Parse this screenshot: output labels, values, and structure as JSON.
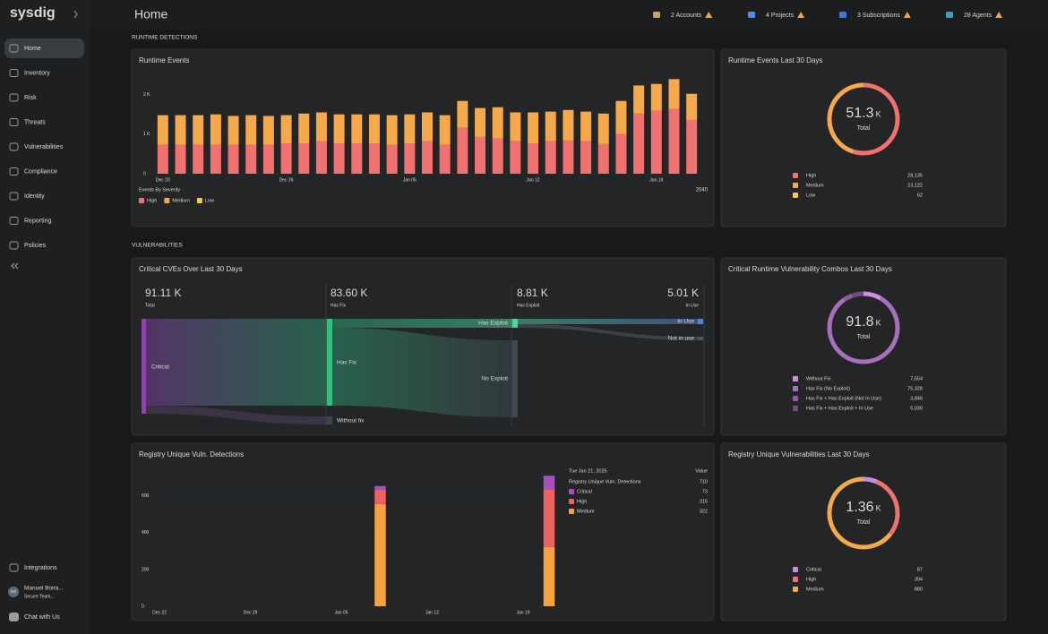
{
  "sidebar": {
    "logo": "sysdig",
    "nav": [
      "Home",
      "Inventory",
      "Risk",
      "Threats",
      "Vulnerabilities",
      "Compliance",
      "Identity",
      "Reporting",
      "Policies"
    ],
    "footer": [
      "Integrations",
      "Chat with Us"
    ],
    "user": {
      "initials": "MB",
      "name": "Manuel Boira...",
      "team": "Secure Team..."
    }
  },
  "topbar": {
    "title": "Home",
    "badges": [
      "2 Accounts",
      "4 Projects",
      "3 Subscriptions",
      "28 Agents"
    ]
  },
  "sections": [
    "RUNTIME DETECTIONS",
    "VULNERABILITIES"
  ],
  "runtime_events": {
    "type": "bar",
    "title": "Runtime Events",
    "categories": [
      "Dec 20",
      null,
      null,
      null,
      null,
      null,
      null,
      "Dec 26",
      null,
      null,
      null,
      null,
      null,
      null,
      "Jan 05",
      null,
      null,
      null,
      null,
      null,
      null,
      "Jan 12",
      null,
      null,
      null,
      null,
      null,
      null,
      "Jan 19",
      null,
      null
    ],
    "series": [
      {
        "name": "High",
        "color": "#f07170",
        "values": [
          730,
          730,
          730,
          730,
          730,
          730,
          730,
          770,
          770,
          820,
          770,
          770,
          770,
          730,
          770,
          820,
          730,
          1160,
          930,
          890,
          820,
          770,
          820,
          840,
          820,
          750,
          1000,
          1520,
          1590,
          1640,
          1360
        ]
      },
      {
        "name": "Medium",
        "color": "#f5a94a",
        "values": [
          750,
          750,
          750,
          770,
          730,
          750,
          730,
          710,
          750,
          730,
          730,
          730,
          730,
          750,
          730,
          730,
          750,
          680,
          730,
          790,
          730,
          780,
          750,
          770,
          750,
          770,
          840,
          710,
          680,
          750,
          660
        ]
      },
      {
        "name": "Low",
        "color": "#f3c945",
        "values": [
          2,
          2,
          2,
          2,
          2,
          2,
          2,
          2,
          2,
          2,
          2,
          2,
          2,
          2,
          2,
          2,
          2,
          2,
          2,
          2,
          2,
          2,
          2,
          2,
          2,
          2,
          2,
          2,
          2,
          2,
          2
        ]
      }
    ],
    "ylim": [
      0,
      2400
    ],
    "yticks": [
      0,
      {
        "value": 1000,
        "label": "1 K"
      },
      {
        "value": 2000,
        "label": "2 K"
      }
    ],
    "legend_title": "Events By Severity",
    "hover_value": 2040
  },
  "runtime_donut": {
    "title": "Runtime Events Last 30 Days",
    "center": "51.3",
    "unit": "K",
    "center_label": "Total",
    "items": [
      {
        "name": "High",
        "color": "#f07170",
        "value": 28135,
        "label": "28,135"
      },
      {
        "name": "Medium",
        "color": "#f5a94a",
        "value": 23122,
        "label": "23,122"
      },
      {
        "name": "Low",
        "color": "#f3c945",
        "value": 62
      }
    ]
  },
  "cves": {
    "title": "Critical CVEs Over Last 30 Days",
    "columns": [
      {
        "value": "91.11 K",
        "label": "Total"
      },
      {
        "value": "83.60 K",
        "label": "Has Fix"
      },
      {
        "value": "8.81 K",
        "label": "Has Exploit"
      },
      {
        "value": "5.01 K",
        "label": "In Use"
      }
    ],
    "nodes": [
      "Critical",
      "Has Fix",
      "Without fix",
      "Has Exploit",
      "No Exploit",
      "In Use",
      "Not in use"
    ]
  },
  "combos_donut": {
    "title": "Critical Runtime Vulnerability Combos Last 30 Days",
    "center": "91.8",
    "unit": "K",
    "center_label": "Total",
    "items": [
      {
        "name": "Without Fix",
        "color": "#d08ee0",
        "value": 7554,
        "label": "7,554"
      },
      {
        "name": "Has Fix (No Exploit)",
        "color": "#a86fbd",
        "value": 75328,
        "label": "75,328"
      },
      {
        "name": "Has Fix + Has Exploit (Not In Use)",
        "color": "#8a5d9d",
        "value": 3846,
        "label": "3,846"
      },
      {
        "name": "Has Fix + Has Exploit + In Use",
        "color": "#6c4d7c",
        "value": 5030,
        "label": "5,030"
      }
    ]
  },
  "registry": {
    "type": "bar",
    "title": "Registry Unique Vuln. Detections",
    "categories": [
      "Dec 22",
      null,
      null,
      null,
      null,
      null,
      null,
      "Dec 29",
      null,
      null,
      null,
      null,
      null,
      null,
      "Jan 05",
      null,
      null,
      null,
      null,
      null,
      null,
      "Jan 12",
      null,
      null,
      null,
      null,
      null,
      null,
      "Jan 19",
      null,
      null
    ],
    "series": [
      {
        "name": "Critical",
        "color": "#a64fc4",
        "values": [
          null,
          null,
          null,
          null,
          null,
          null,
          null,
          null,
          null,
          null,
          null,
          null,
          null,
          null,
          null,
          null,
          null,
          20,
          null,
          null,
          null,
          null,
          null,
          null,
          null,
          null,
          null,
          null,
          null,
          null,
          73
        ]
      },
      {
        "name": "High",
        "color": "#ec6161",
        "values": [
          null,
          null,
          null,
          null,
          null,
          null,
          null,
          null,
          null,
          null,
          null,
          null,
          null,
          null,
          null,
          null,
          null,
          78,
          null,
          null,
          null,
          null,
          null,
          null,
          null,
          null,
          null,
          null,
          null,
          null,
          315
        ]
      },
      {
        "name": "Medium",
        "color": "#f5a33e",
        "values": [
          null,
          null,
          null,
          null,
          null,
          null,
          null,
          null,
          null,
          null,
          null,
          null,
          null,
          null,
          null,
          null,
          null,
          556,
          null,
          null,
          null,
          null,
          null,
          null,
          null,
          null,
          null,
          null,
          null,
          null,
          322
        ]
      }
    ],
    "ylim": [
      0,
      760
    ],
    "yticks": [
      0,
      200,
      400,
      600
    ],
    "tooltip": {
      "date": "Tue Jan 21, 2025",
      "header": "Value",
      "total_name": "Registry Unique Vuln. Detections",
      "total": 710
    }
  },
  "registry_donut": {
    "title": "Registry Unique Vulnerabilities Last 30 Days",
    "center": "1.36",
    "unit": "K",
    "center_label": "Total",
    "items": [
      {
        "name": "Critical",
        "color": "#c58ce0",
        "value": 87
      },
      {
        "name": "High",
        "color": "#f07170",
        "value": 394
      },
      {
        "name": "Medium",
        "color": "#f5a94a",
        "value": 880
      }
    ]
  }
}
